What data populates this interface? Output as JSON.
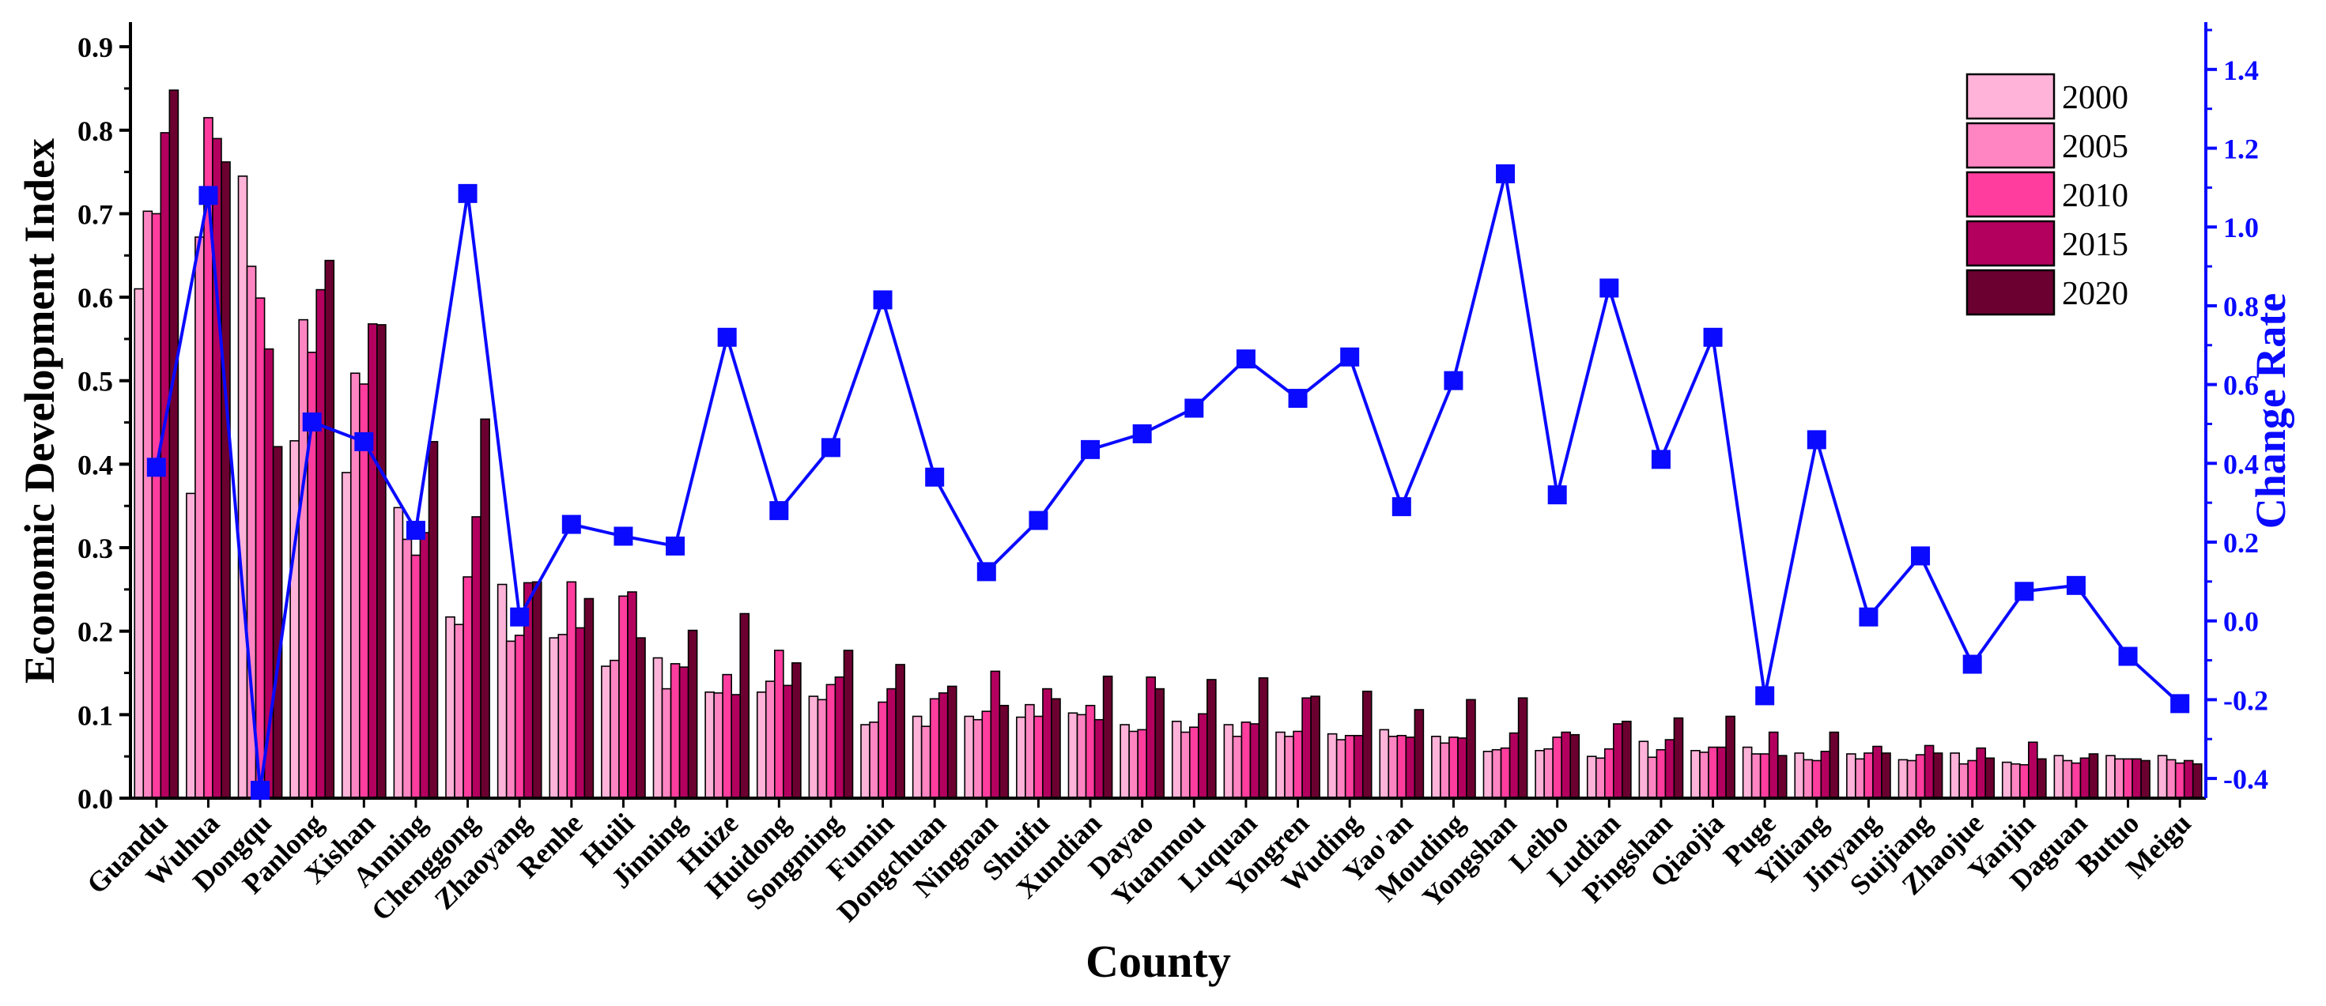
{
  "chart_data": {
    "type": "bar",
    "xlabel": "County",
    "ylabel": "Economic Development Index",
    "y2label": "Change Rate",
    "ylim": [
      0,
      0.92
    ],
    "y2lim": [
      -0.45,
      1.5
    ],
    "yticks": [
      "0.0",
      "0.1",
      "0.2",
      "0.3",
      "0.4",
      "0.5",
      "0.6",
      "0.7",
      "0.8",
      "0.9"
    ],
    "y2ticks": [
      "-0.4",
      "-0.2",
      "0.0",
      "0.2",
      "0.4",
      "0.6",
      "0.8",
      "1.0",
      "1.2",
      "1.4"
    ],
    "legend_position": "top-right",
    "categories": [
      "Guandu",
      "Wuhua",
      "Dongqu",
      "Panlong",
      "Xishan",
      "Anning",
      "Chenggong",
      "Zhaoyang",
      "Renhe",
      "Huili",
      "Jinning",
      "Huize",
      "Huidong",
      "Songming",
      "Fumin",
      "Dongchuan",
      "Ningnan",
      "Shuifu",
      "Xundian",
      "Dayao",
      "Yuanmou",
      "Luquan",
      "Yongren",
      "Wuding",
      "Yao'an",
      "Mouding",
      "Yongshan",
      "Leibo",
      "Ludian",
      "Pingshan",
      "Qiaojia",
      "Puge",
      "Yiliang",
      "Jinyang",
      "Suijiang",
      "Zhaojue",
      "Yanjin",
      "Daguan",
      "Butuo",
      "Meigu"
    ],
    "series": [
      {
        "name": "2000",
        "color": "#ffb3d9",
        "values": [
          0.61,
          0.365,
          0.745,
          0.428,
          0.39,
          0.348,
          0.217,
          0.256,
          0.192,
          0.158,
          0.168,
          0.127,
          0.127,
          0.122,
          0.088,
          0.098,
          0.098,
          0.097,
          0.102,
          0.088,
          0.092,
          0.088,
          0.079,
          0.077,
          0.082,
          0.074,
          0.056,
          0.057,
          0.05,
          0.068,
          0.057,
          0.061,
          0.054,
          0.053,
          0.046,
          0.054,
          0.043,
          0.051,
          0.051,
          0.051
        ]
      },
      {
        "name": "2005",
        "color": "#ff85c2",
        "values": [
          0.703,
          0.672,
          0.637,
          0.573,
          0.509,
          0.31,
          0.208,
          0.188,
          0.196,
          0.165,
          0.131,
          0.126,
          0.14,
          0.118,
          0.091,
          0.086,
          0.094,
          0.112,
          0.1,
          0.08,
          0.079,
          0.074,
          0.074,
          0.07,
          0.074,
          0.066,
          0.058,
          0.059,
          0.048,
          0.049,
          0.055,
          0.053,
          0.046,
          0.047,
          0.045,
          0.041,
          0.041,
          0.045,
          0.047,
          0.046
        ]
      },
      {
        "name": "2010",
        "color": "#ff3d9e",
        "values": [
          0.7,
          0.815,
          0.599,
          0.534,
          0.496,
          0.291,
          0.265,
          0.195,
          0.259,
          0.242,
          0.161,
          0.148,
          0.177,
          0.136,
          0.115,
          0.119,
          0.104,
          0.098,
          0.111,
          0.082,
          0.085,
          0.091,
          0.08,
          0.075,
          0.075,
          0.073,
          0.06,
          0.073,
          0.059,
          0.058,
          0.061,
          0.053,
          0.045,
          0.054,
          0.052,
          0.045,
          0.04,
          0.042,
          0.047,
          0.042
        ]
      },
      {
        "name": "2015",
        "color": "#b3005f",
        "values": [
          0.797,
          0.79,
          0.538,
          0.609,
          0.568,
          0.318,
          0.337,
          0.258,
          0.204,
          0.247,
          0.157,
          0.124,
          0.135,
          0.145,
          0.131,
          0.126,
          0.152,
          0.131,
          0.094,
          0.145,
          0.101,
          0.089,
          0.12,
          0.075,
          0.073,
          0.072,
          0.078,
          0.079,
          0.089,
          0.07,
          0.061,
          0.079,
          0.056,
          0.062,
          0.063,
          0.06,
          0.067,
          0.048,
          0.047,
          0.045
        ]
      },
      {
        "name": "2020",
        "color": "#6b0030",
        "values": [
          0.848,
          0.762,
          0.421,
          0.644,
          0.567,
          0.427,
          0.454,
          0.259,
          0.239,
          0.192,
          0.201,
          0.221,
          0.162,
          0.177,
          0.16,
          0.134,
          0.111,
          0.119,
          0.146,
          0.131,
          0.142,
          0.144,
          0.122,
          0.128,
          0.106,
          0.118,
          0.12,
          0.076,
          0.092,
          0.096,
          0.098,
          0.051,
          0.079,
          0.054,
          0.054,
          0.048,
          0.047,
          0.053,
          0.045,
          0.041
        ]
      }
    ],
    "line": {
      "color": "#0a0aff",
      "values": [
        0.39,
        1.08,
        -0.43,
        0.505,
        0.455,
        0.23,
        1.085,
        0.01,
        0.245,
        0.215,
        0.19,
        0.72,
        0.28,
        0.44,
        0.815,
        0.365,
        0.125,
        0.255,
        0.435,
        0.475,
        0.54,
        0.665,
        0.565,
        0.67,
        0.29,
        0.61,
        1.135,
        0.32,
        0.845,
        0.41,
        0.72,
        -0.19,
        0.46,
        0.01,
        0.165,
        -0.11,
        0.075,
        0.09,
        -0.09,
        -0.21
      ]
    }
  }
}
